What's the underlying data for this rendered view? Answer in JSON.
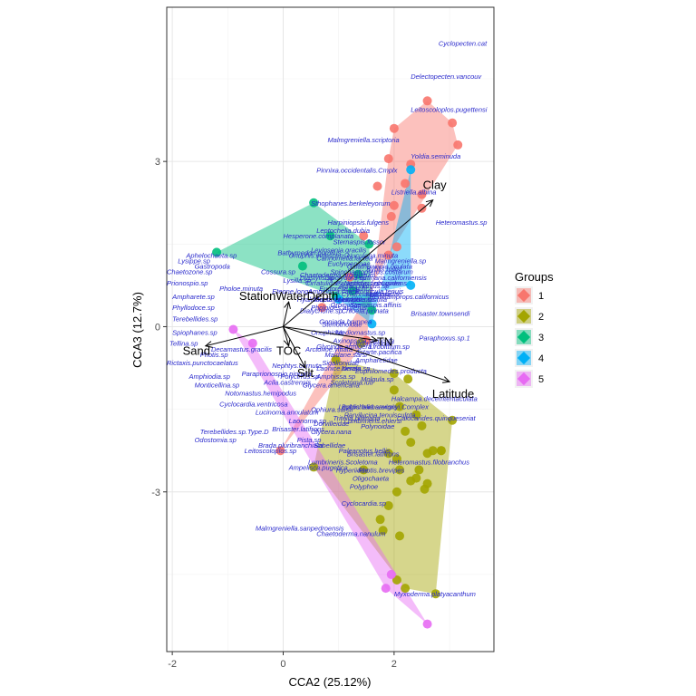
{
  "chart_data": {
    "type": "scatter",
    "xlabel": "CCA2 (25.12%)",
    "ylabel": "CCA3 (12.7%)",
    "xlim": [
      -2.1,
      3.8
    ],
    "ylim": [
      -5.9,
      5.8
    ],
    "xticks": [
      -2,
      0,
      2
    ],
    "yticks": [
      -3,
      0,
      3
    ],
    "grid": true,
    "legend": {
      "title": "Groups",
      "position": "right",
      "entries": [
        "1",
        "2",
        "3",
        "4",
        "5"
      ]
    },
    "group_colors": {
      "1": "#F8766D",
      "2": "#A3A500",
      "3": "#00BF7D",
      "4": "#00B0F6",
      "5": "#E76BF3"
    },
    "species_color": "#2a2acc",
    "series": [
      {
        "name": "1",
        "points": [
          [
            2.6,
            4.1
          ],
          [
            3.05,
            3.7
          ],
          [
            3.15,
            3.3
          ],
          [
            2.0,
            3.6
          ],
          [
            1.9,
            3.05
          ],
          [
            2.2,
            2.6
          ],
          [
            2.5,
            2.4
          ],
          [
            1.7,
            2.55
          ],
          [
            2.0,
            2.2
          ],
          [
            2.5,
            2.15
          ],
          [
            1.95,
            2.0
          ],
          [
            2.3,
            2.95
          ],
          [
            1.45,
            1.65
          ],
          [
            2.05,
            1.45
          ],
          [
            1.9,
            1.3
          ],
          [
            -0.05,
            -2.25
          ],
          [
            1.5,
            -0.25
          ],
          [
            0.7,
            0.35
          ],
          [
            1.2,
            0.9
          ]
        ]
      },
      {
        "name": "2",
        "points": [
          [
            2.0,
            -0.85
          ],
          [
            2.25,
            -0.95
          ],
          [
            2.1,
            -1.45
          ],
          [
            2.4,
            -1.6
          ],
          [
            2.2,
            -1.9
          ],
          [
            3.05,
            -1.7
          ],
          [
            2.5,
            -1.8
          ],
          [
            2.3,
            -2.1
          ],
          [
            2.7,
            -2.25
          ],
          [
            2.85,
            -2.25
          ],
          [
            1.9,
            -2.3
          ],
          [
            2.05,
            -2.4
          ],
          [
            2.6,
            -2.3
          ],
          [
            2.85,
            -2.25
          ],
          [
            2.1,
            -2.6
          ],
          [
            2.4,
            -2.75
          ],
          [
            2.3,
            -2.8
          ],
          [
            2.6,
            -2.85
          ],
          [
            2.55,
            -2.95
          ],
          [
            1.75,
            -3.5
          ],
          [
            1.9,
            -3.25
          ],
          [
            2.05,
            -3.0
          ],
          [
            1.8,
            -3.7
          ],
          [
            2.1,
            -3.8
          ],
          [
            2.05,
            -4.6
          ],
          [
            2.2,
            -4.75
          ],
          [
            2.75,
            -4.85
          ],
          [
            0.55,
            -2.55
          ],
          [
            1.45,
            -2.6
          ],
          [
            0.95,
            -0.6
          ],
          [
            1.4,
            -0.3
          ],
          [
            2.0,
            -1.15
          ],
          [
            2.45,
            -2.6
          ]
        ]
      },
      {
        "name": "3",
        "points": [
          [
            -1.2,
            1.35
          ],
          [
            0.55,
            2.25
          ],
          [
            0.85,
            1.65
          ],
          [
            1.55,
            1.5
          ],
          [
            1.6,
            0.3
          ],
          [
            1.25,
            0.65
          ],
          [
            0.95,
            0.55
          ],
          [
            0.35,
            1.1
          ],
          [
            1.35,
            0.95
          ]
        ]
      },
      {
        "name": "4",
        "points": [
          [
            2.3,
            0.75
          ],
          [
            2.3,
            2.85
          ],
          [
            1.6,
            0.05
          ],
          [
            1.0,
            0.5
          ]
        ]
      },
      {
        "name": "5",
        "points": [
          [
            1.85,
            -4.75
          ],
          [
            2.6,
            -5.4
          ],
          [
            1.95,
            -4.5
          ],
          [
            -0.55,
            -0.3
          ],
          [
            -0.9,
            -0.05
          ]
        ]
      }
    ],
    "hulls": {
      "1": [
        [
          2.6,
          4.1
        ],
        [
          3.05,
          3.7
        ],
        [
          3.15,
          3.3
        ],
        [
          1.9,
          1.3
        ],
        [
          -0.05,
          -2.25
        ],
        [
          1.5,
          -0.25
        ],
        [
          1.9,
          3.05
        ],
        [
          2.0,
          3.6
        ]
      ],
      "2": [
        [
          2.0,
          -0.85
        ],
        [
          3.05,
          -1.7
        ],
        [
          2.75,
          -4.85
        ],
        [
          2.2,
          -4.75
        ],
        [
          0.55,
          -2.55
        ],
        [
          0.95,
          -0.6
        ]
      ],
      "3": [
        [
          -1.2,
          1.35
        ],
        [
          0.55,
          2.25
        ],
        [
          1.55,
          1.5
        ],
        [
          1.6,
          0.3
        ],
        [
          0.95,
          0.55
        ]
      ],
      "4": [
        [
          2.3,
          2.85
        ],
        [
          2.3,
          0.75
        ],
        [
          1.0,
          0.5
        ],
        [
          1.6,
          0.05
        ]
      ],
      "5": [
        [
          2.6,
          -5.4
        ],
        [
          1.85,
          -4.75
        ],
        [
          -0.9,
          -0.05
        ],
        [
          -0.55,
          -0.3
        ]
      ]
    },
    "env_vectors": [
      {
        "name": "Clay",
        "x": 2.7,
        "y": 2.3
      },
      {
        "name": "StationWaterDepth",
        "x": 0.1,
        "y": 0.45
      },
      {
        "name": "Sand",
        "x": -1.4,
        "y": -0.35
      },
      {
        "name": "TOC",
        "x": 0.1,
        "y": -0.35
      },
      {
        "name": "Silt",
        "x": 0.4,
        "y": -0.75
      },
      {
        "name": "TN",
        "x": 1.7,
        "y": -0.25
      },
      {
        "name": "Latitude",
        "x": 3.0,
        "y": -1.0
      }
    ],
    "species": [
      {
        "label": "Cyclopecten.cat",
        "x": 2.8,
        "y": 5.1
      },
      {
        "label": "Delectopecten.vancouv",
        "x": 2.3,
        "y": 4.5
      },
      {
        "label": "Leitoscoloplos.pugettensi",
        "x": 2.3,
        "y": 3.9
      },
      {
        "label": "Malmgreniella.scriptoria",
        "x": 0.8,
        "y": 3.35
      },
      {
        "label": "Yoldia.seminuda",
        "x": 2.3,
        "y": 3.05
      },
      {
        "label": "Pinnixa.occidentalis.Cmplx",
        "x": 0.6,
        "y": 2.8
      },
      {
        "label": "Listriella.albina",
        "x": 1.95,
        "y": 2.4
      },
      {
        "label": "Sthophanes.berkeleyorum",
        "x": 0.5,
        "y": 2.2
      },
      {
        "label": "Heteromastus.sp",
        "x": 2.75,
        "y": 1.85
      },
      {
        "label": "Harpiniopsis.fulgens",
        "x": 0.8,
        "y": 1.85
      },
      {
        "label": "Leptochelia.dubia",
        "x": 0.6,
        "y": 1.7
      },
      {
        "label": "Hesperone.complanata",
        "x": 0.0,
        "y": 1.6
      },
      {
        "label": "Nuculana.minuta",
        "x": 1.15,
        "y": 1.25
      },
      {
        "label": "Aphelochaeta.sp",
        "x": -1.75,
        "y": 1.25
      },
      {
        "label": "Lysippe.sp",
        "x": -1.9,
        "y": 1.15
      },
      {
        "label": "Gastropoda",
        "x": -1.6,
        "y": 1.05
      },
      {
        "label": "Malmgreniella.sp",
        "x": 1.65,
        "y": 1.15
      },
      {
        "label": "Chaetozone.sp",
        "x": -2.1,
        "y": 0.95
      },
      {
        "label": "Prionospio.sp",
        "x": -2.1,
        "y": 0.75
      },
      {
        "label": "Glycera.americana",
        "x": 0.35,
        "y": -1.1
      },
      {
        "label": "Maldanidae",
        "x": 1.5,
        "y": 0.55
      },
      {
        "label": "Aglaophamus.sp",
        "x": 1.0,
        "y": 0.7
      },
      {
        "label": "Diastylis.sp",
        "x": 0.3,
        "y": 0.85
      },
      {
        "label": "Cossura.sp",
        "x": -0.4,
        "y": 0.95
      },
      {
        "label": "Pholoe.minuta",
        "x": -1.15,
        "y": 0.65
      },
      {
        "label": "Ampharete.sp",
        "x": -2.0,
        "y": 0.5
      },
      {
        "label": "Phyllodoce.sp",
        "x": -2.0,
        "y": 0.3
      },
      {
        "label": "Terebellides.sp",
        "x": -2.0,
        "y": 0.1
      },
      {
        "label": "Spiophanes.sp",
        "x": -2.0,
        "y": -0.15
      },
      {
        "label": "Tellina.sp",
        "x": -2.05,
        "y": -0.35
      },
      {
        "label": "Photis.sp",
        "x": -1.5,
        "y": -0.55
      },
      {
        "label": "Rictaxis.punctocaelatus",
        "x": -2.1,
        "y": -0.7
      },
      {
        "label": "Decamastus.gracilis",
        "x": -1.3,
        "y": -0.45
      },
      {
        "label": "Stenothoidae",
        "x": 0.7,
        "y": 0.0
      },
      {
        "label": "Mediomastus.sp",
        "x": 0.95,
        "y": -0.15
      },
      {
        "label": "Axinopsida.serricata",
        "x": 0.9,
        "y": -0.3
      },
      {
        "label": "Lumbrineridae",
        "x": 1.2,
        "y": -0.35
      },
      {
        "label": "Astarte.pacifica",
        "x": 1.3,
        "y": -0.5
      },
      {
        "label": "Nephtys.cornuta",
        "x": -0.2,
        "y": -0.75
      },
      {
        "label": "Amphiodia.sp",
        "x": -1.7,
        "y": -0.95
      },
      {
        "label": "Paraprionospio.pinnata",
        "x": -0.75,
        "y": -0.9
      },
      {
        "label": "Monticellina.sp",
        "x": -1.6,
        "y": -1.1
      },
      {
        "label": "Notomastus.hemipodus",
        "x": -1.05,
        "y": -1.25
      },
      {
        "label": "Laonice.cirrata",
        "x": 0.6,
        "y": -0.8
      },
      {
        "label": "Pholoides.asperus",
        "x": 0.5,
        "y": 0.3
      },
      {
        "label": "Nutricola.tantilla",
        "x": 1.0,
        "y": 0.45
      },
      {
        "label": "Hemilamprops.californicus",
        "x": 1.55,
        "y": 0.5
      },
      {
        "label": "Cylichna.attonsa",
        "x": 1.05,
        "y": 0.55
      },
      {
        "label": "Eudorella.pacifica",
        "x": 0.65,
        "y": 0.65
      },
      {
        "label": "Ennucula.tenuis",
        "x": 1.3,
        "y": 0.6
      },
      {
        "label": "Byblis.millsi",
        "x": 1.5,
        "y": 1.0
      },
      {
        "label": "Sternaspis.fossor",
        "x": 0.9,
        "y": 1.5
      },
      {
        "label": "Levinsenia.gracilis",
        "x": 0.5,
        "y": 1.35
      },
      {
        "label": "Carinomella.lactea",
        "x": 0.6,
        "y": 1.2
      },
      {
        "label": "Galathowenia.oculata",
        "x": 1.15,
        "y": 1.05
      },
      {
        "label": "Onuphis.iridescens",
        "x": 0.1,
        "y": 1.25
      },
      {
        "label": "Eteone.longa",
        "x": -0.2,
        "y": 0.6
      },
      {
        "label": "Lysilla.sp",
        "x": 0.0,
        "y": 0.8
      },
      {
        "label": "Paraphoxus.obtusidens",
        "x": 0.95,
        "y": 0.75
      },
      {
        "label": "Pectinaria.californiensis",
        "x": 1.3,
        "y": 0.85
      },
      {
        "label": "Spiochaetopterus.costarum",
        "x": 0.85,
        "y": 0.95
      },
      {
        "label": "Euclymeninae",
        "x": 0.8,
        "y": 1.1
      },
      {
        "label": "Paraphoxus.sp.1",
        "x": 2.45,
        "y": -0.25
      },
      {
        "label": "Brisaster.townsendi",
        "x": 2.3,
        "y": 0.2
      },
      {
        "label": "Sternaspis.affinis",
        "x": 1.2,
        "y": 0.35
      },
      {
        "label": "Macoma.carlottensis",
        "x": 0.55,
        "y": 0.45
      },
      {
        "label": "Ampelisca.careyi",
        "x": 0.45,
        "y": 0.6
      },
      {
        "label": "Cirratulidae",
        "x": 0.4,
        "y": 0.75
      },
      {
        "label": "Chaetoderma.argenteum",
        "x": 0.3,
        "y": 0.9
      },
      {
        "label": "Dipolydora.sp",
        "x": 0.75,
        "y": 0.85
      },
      {
        "label": "Chloeia.pinnata",
        "x": 1.05,
        "y": 0.25
      },
      {
        "label": "Orbiniidae",
        "x": 0.85,
        "y": 0.35
      },
      {
        "label": "Nephtys.ferruginea",
        "x": 1.1,
        "y": 0.75
      },
      {
        "label": "Dialychone.sp",
        "x": 0.3,
        "y": 0.25
      },
      {
        "label": "Hyalinoecia.juvenalis",
        "x": 0.25,
        "y": 0.45
      },
      {
        "label": "Goniada.brunnea",
        "x": 0.65,
        "y": 0.05
      },
      {
        "label": "Onuphidae",
        "x": 0.5,
        "y": -0.15
      },
      {
        "label": "Glycinde.armigera",
        "x": 0.6,
        "y": -0.4
      },
      {
        "label": "Maldane.sarsi",
        "x": 0.75,
        "y": -0.55
      },
      {
        "label": "Arctonoe.vittata",
        "x": 0.4,
        "y": -0.45
      },
      {
        "label": "Sigalionidae",
        "x": 0.7,
        "y": -0.7
      },
      {
        "label": "Amphissa.sp",
        "x": 0.6,
        "y": -0.95
      },
      {
        "label": "Polycirrus.sp",
        "x": -0.05,
        "y": -0.95
      },
      {
        "label": "Acila.castrensis",
        "x": -0.35,
        "y": -1.05
      },
      {
        "label": "Nereis.sp",
        "x": 1.05,
        "y": -0.8
      },
      {
        "label": "Ampharetidae",
        "x": 1.3,
        "y": -0.65
      },
      {
        "label": "Scoletoma.luti",
        "x": 0.85,
        "y": -1.05
      },
      {
        "label": "Euphilomedes.producta",
        "x": 1.3,
        "y": -0.85
      },
      {
        "label": "Molgula.sp",
        "x": 1.4,
        "y": -1.0
      },
      {
        "label": "Lirobittium.sp",
        "x": 1.55,
        "y": -0.4
      },
      {
        "label": "Halcampa.decemtentaculata",
        "x": 1.95,
        "y": -1.35
      },
      {
        "label": "Byblis.barbarensis",
        "x": 1.05,
        "y": -1.5
      },
      {
        "label": "Leptochelia.savignyi.Complex",
        "x": 1.0,
        "y": -1.5
      },
      {
        "label": "Cyclocardia.ventricosa",
        "x": -1.15,
        "y": -1.45
      },
      {
        "label": "Lucinoma.annulatum",
        "x": -0.5,
        "y": -1.6
      },
      {
        "label": "Tritella.pilimana",
        "x": 0.9,
        "y": -1.7
      },
      {
        "label": "Ophiura.sarsii",
        "x": 0.5,
        "y": -1.55
      },
      {
        "label": "Parvilucina.tenuisculpta",
        "x": 1.1,
        "y": -1.65
      },
      {
        "label": "Calocarides.quinqueseriat",
        "x": 2.05,
        "y": -1.7
      },
      {
        "label": "Lumbrineris.ehlersi",
        "x": 1.1,
        "y": -1.75
      },
      {
        "label": "Laonome.sp",
        "x": 0.1,
        "y": -1.75
      },
      {
        "label": "Dorvilleidae",
        "x": 0.55,
        "y": -1.8
      },
      {
        "label": "Polynoidae",
        "x": 1.4,
        "y": -1.85
      },
      {
        "label": "Brisaster.latifrons",
        "x": -0.2,
        "y": -1.9
      },
      {
        "label": "Glycera.nana",
        "x": 0.5,
        "y": -1.95
      },
      {
        "label": "Terebellides.sp.Type.D",
        "x": -1.5,
        "y": -1.95
      },
      {
        "label": "Odostomia.sp",
        "x": -1.6,
        "y": -2.1
      },
      {
        "label": "Pista.sp",
        "x": 0.25,
        "y": -2.1
      },
      {
        "label": "Sabellidae",
        "x": 0.55,
        "y": -2.2
      },
      {
        "label": "Bathymedon.pumilus",
        "x": -0.1,
        "y": 1.3
      },
      {
        "label": "Brada.pluribranchiata",
        "x": -0.45,
        "y": -2.2
      },
      {
        "label": "Leitoscoloplos.sp",
        "x": -0.7,
        "y": -2.3
      },
      {
        "label": "Paleanotus.bellis",
        "x": 1.0,
        "y": -2.3
      },
      {
        "label": "Brisaster.latifrons",
        "x": 1.15,
        "y": -2.35
      },
      {
        "label": "Lumbrineris.Scoletoma",
        "x": 0.45,
        "y": -2.5
      },
      {
        "label": "Heteromastus.filobranchus",
        "x": 1.9,
        "y": -2.5
      },
      {
        "label": "Ampelisca.pugetica",
        "x": 0.1,
        "y": -2.6
      },
      {
        "label": "Hyperiidae",
        "x": 0.95,
        "y": -2.65
      },
      {
        "label": "Photis.brevipes",
        "x": 1.35,
        "y": -2.65
      },
      {
        "label": "Oligochaeta",
        "x": 1.25,
        "y": -2.8
      },
      {
        "label": "Polyphoe",
        "x": 1.2,
        "y": -2.95
      },
      {
        "label": "Cyclocardia.sp",
        "x": 1.05,
        "y": -3.25
      },
      {
        "label": "Malmgreniella.sanpedroensis",
        "x": -0.5,
        "y": -3.7
      },
      {
        "label": "Chaetoderma.nanulum",
        "x": 0.6,
        "y": -3.8
      },
      {
        "label": "Myxoderma.platyacanthum",
        "x": 2.0,
        "y": -4.9
      }
    ]
  }
}
